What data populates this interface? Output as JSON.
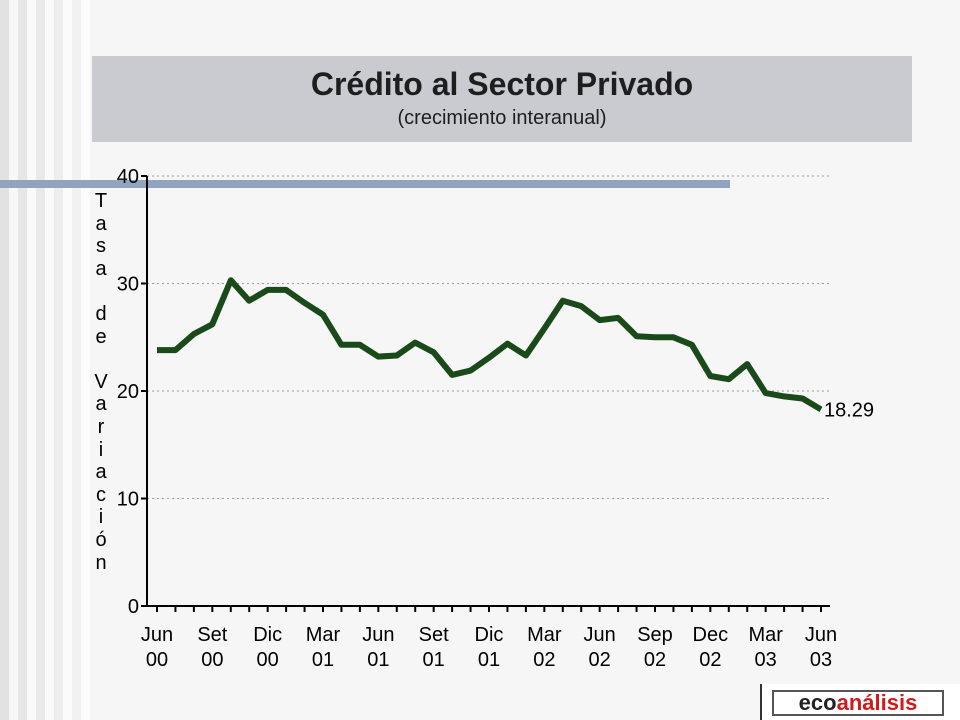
{
  "title": "Crédito al Sector Privado",
  "subtitle": "(crecimiento interanual)",
  "logo": {
    "part1": "eco",
    "part2": "análisis"
  },
  "chart_data": {
    "type": "line",
    "title": "Crédito al Sector Privado",
    "subtitle": "(crecimiento interanual)",
    "ylabel": "Tasa de Variación",
    "xlabel": "",
    "ylim": [
      0,
      40
    ],
    "yticks": [
      0,
      10,
      20,
      30,
      40
    ],
    "grid": "horizontal dotted",
    "line_color": "#1a4a1a",
    "x_tick_labels": [
      [
        "Jun",
        "00"
      ],
      [
        "Set",
        "00"
      ],
      [
        "Dic",
        "00"
      ],
      [
        "Mar",
        "01"
      ],
      [
        "Jun",
        "01"
      ],
      [
        "Set",
        "01"
      ],
      [
        "Dic",
        "01"
      ],
      [
        "Mar",
        "02"
      ],
      [
        "Jun",
        "02"
      ],
      [
        "Sep",
        "02"
      ],
      [
        "Dec",
        "02"
      ],
      [
        "Mar",
        "03"
      ],
      [
        "Jun",
        "03"
      ]
    ],
    "series": [
      {
        "values": [
          23.8,
          23.8,
          25.3,
          26.2,
          30.3,
          28.4,
          29.4,
          29.4,
          28.2,
          27.1,
          24.3,
          24.3,
          23.2,
          23.3,
          24.5,
          23.6,
          21.5,
          21.9,
          23.1,
          24.4,
          23.3,
          25.8,
          28.4,
          27.9,
          26.6,
          26.8,
          25.1,
          25.0,
          25.0,
          24.3,
          21.4,
          21.1,
          22.5,
          19.8,
          19.5,
          19.3,
          18.29
        ],
        "end_label": "18.29"
      }
    ]
  }
}
